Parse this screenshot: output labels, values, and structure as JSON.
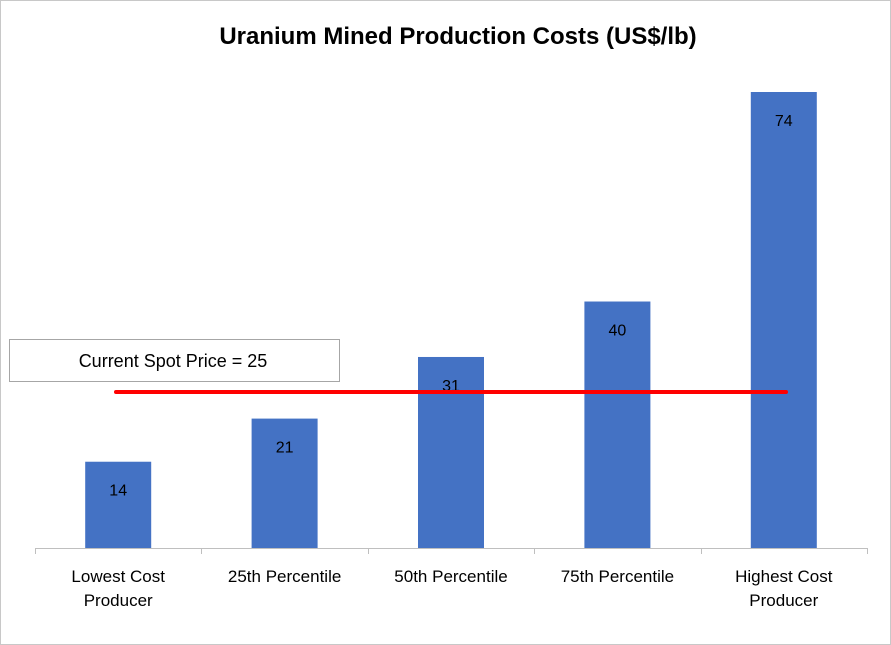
{
  "chart_data": {
    "type": "bar",
    "title": "Uranium Mined Production Costs (US$/lb)",
    "categories": [
      [
        "Lowest Cost",
        "Producer"
      ],
      [
        "25th Percentile"
      ],
      [
        "50th Percentile"
      ],
      [
        "75th Percentile"
      ],
      [
        "Highest Cost",
        "Producer"
      ]
    ],
    "values": [
      14,
      21,
      31,
      40,
      74
    ],
    "data_labels": [
      "14",
      "21",
      "31",
      "40",
      "74"
    ],
    "xlabel": "",
    "ylabel": "",
    "ylim": [
      0,
      81
    ],
    "grid": false,
    "legend": "none",
    "reference_line": {
      "label": "Current Spot Price = 25",
      "value": 25,
      "color": "#ff0000"
    },
    "colors": {
      "bar": "#4472c4",
      "axis": "#bfbfbf",
      "annotation_border": "#a6a6a6"
    }
  }
}
